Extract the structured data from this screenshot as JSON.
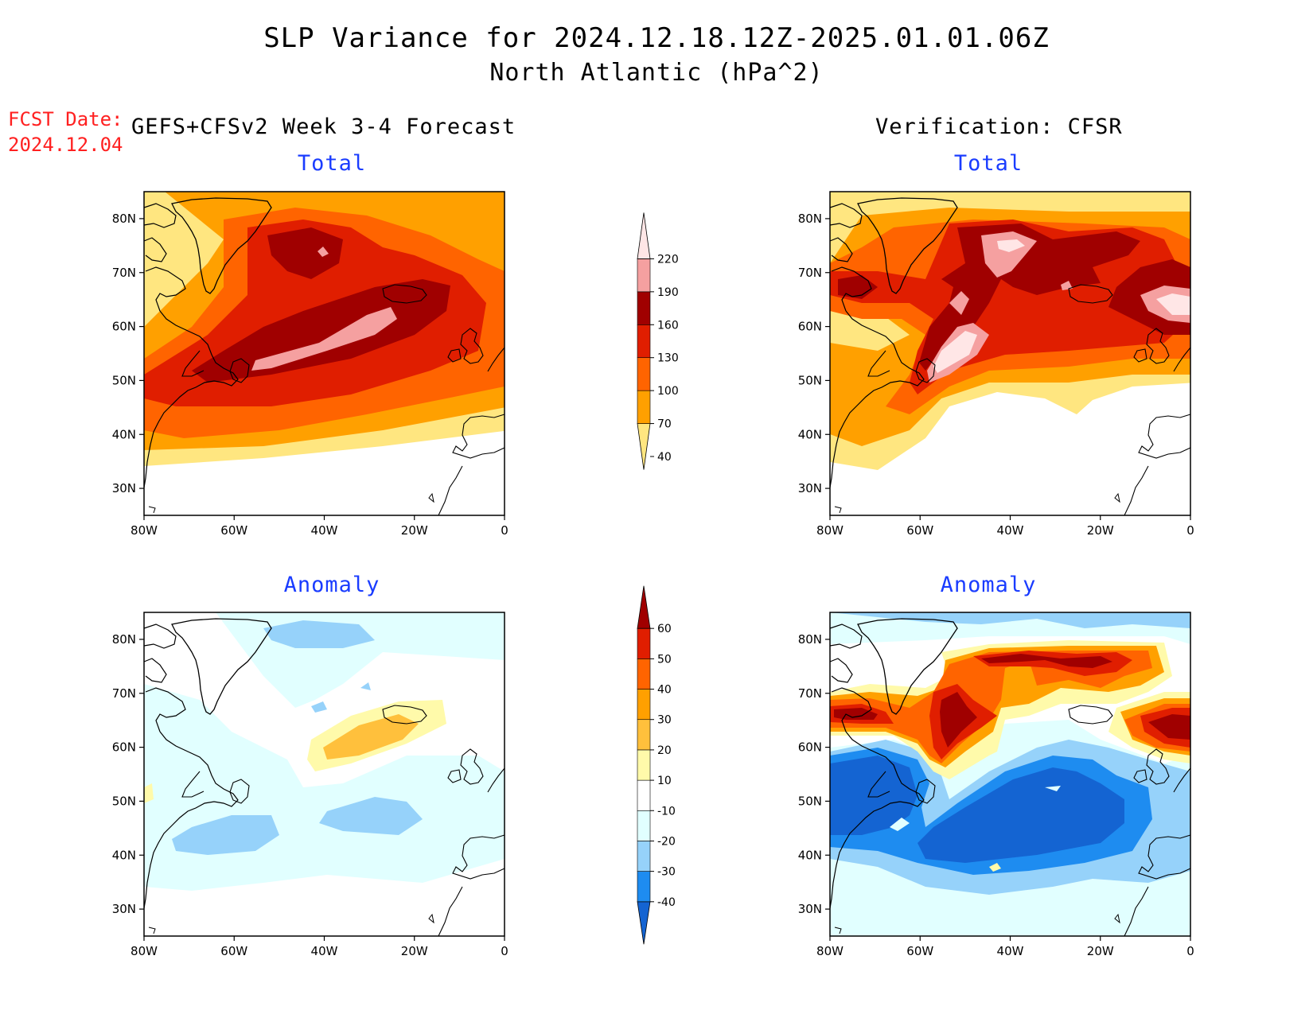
{
  "title": "SLP Variance for 2024.12.18.12Z-2025.01.01.06Z",
  "subtitle": "North Atlantic (hPa^2)",
  "fcst_date": {
    "label": "FCST Date:",
    "value": "2024.12.04"
  },
  "left_heading": "GEFS+CFSv2 Week 3-4 Forecast",
  "right_heading": "Verification: CFSR",
  "panels": [
    {
      "id": "forecast-total",
      "title": "Total"
    },
    {
      "id": "verification-total",
      "title": "Total"
    },
    {
      "id": "forecast-anomaly",
      "title": "Anomaly"
    },
    {
      "id": "verification-anomaly",
      "title": "Anomaly"
    }
  ],
  "map_extent": {
    "lon": [
      -80,
      0
    ],
    "lat": [
      25,
      85
    ]
  },
  "lon_ticks": [
    "80W",
    "60W",
    "40W",
    "20W",
    "0"
  ],
  "lat_ticks": [
    "30N",
    "40N",
    "50N",
    "60N",
    "70N",
    "80N"
  ],
  "total_colorbar": {
    "levels": [
      "40",
      "70",
      "100",
      "130",
      "160",
      "190",
      "220"
    ],
    "colors": [
      "#ffe680",
      "#ffa000",
      "#ff6400",
      "#e01e00",
      "#a00000",
      "#f5a0a0",
      "#ffe6e6"
    ]
  },
  "anomaly_colorbar": {
    "levels": [
      "-40",
      "-30",
      "-20",
      "-10",
      "10",
      "20",
      "30",
      "40",
      "50",
      "60"
    ],
    "colors": [
      "#1464d2",
      "#1e8cf0",
      "#96d2fa",
      "#e1ffff",
      "#ffffff",
      "#fffaaa",
      "#ffc03c",
      "#ffa000",
      "#ff6400",
      "#e01e00",
      "#a00000"
    ]
  }
}
